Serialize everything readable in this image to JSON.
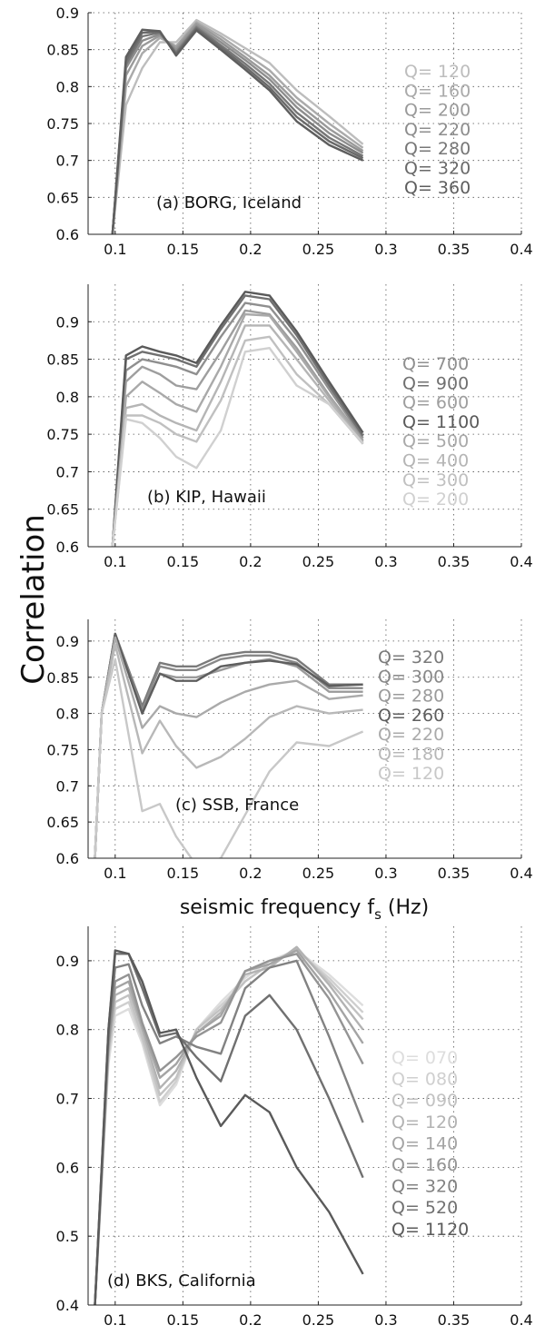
{
  "figure": {
    "ylabel": "Correlation",
    "xlabel": "seismic frequency f",
    "xlabel_sub": "s",
    "xlabel_unit": " (Hz)"
  },
  "chart_data": [
    {
      "type": "line",
      "annotation": "(a) BORG, Iceland",
      "xlim": [
        0.08,
        0.4
      ],
      "ylim": [
        0.6,
        0.9
      ],
      "xticks": [
        "0.1",
        "0.15",
        "0.2",
        "0.25",
        "0.3",
        "0.35",
        "0.4"
      ],
      "yticks": [
        "0.6",
        "0.65",
        "0.7",
        "0.75",
        "0.8",
        "0.85",
        "0.9"
      ],
      "grid": true,
      "legend": "right",
      "x": [
        0.098,
        0.108,
        0.12,
        0.133,
        0.145,
        0.16,
        0.178,
        0.196,
        0.214,
        0.234,
        0.258,
        0.283
      ],
      "series": [
        {
          "name": "Q= 120",
          "color": "#bdbdbd",
          "values": [
            0.6,
            0.775,
            0.825,
            0.86,
            0.86,
            0.89,
            0.872,
            0.852,
            0.832,
            0.795,
            0.76,
            0.722
          ]
        },
        {
          "name": "Q= 160",
          "color": "#aaaaaa",
          "values": [
            0.6,
            0.8,
            0.845,
            0.866,
            0.855,
            0.887,
            0.868,
            0.845,
            0.822,
            0.785,
            0.75,
            0.717
          ]
        },
        {
          "name": "Q= 200",
          "color": "#9a9a9a",
          "values": [
            0.6,
            0.815,
            0.855,
            0.869,
            0.852,
            0.885,
            0.864,
            0.84,
            0.815,
            0.778,
            0.743,
            0.713
          ]
        },
        {
          "name": "Q= 220",
          "color": "#8d8d8d",
          "values": [
            0.6,
            0.825,
            0.862,
            0.871,
            0.849,
            0.882,
            0.86,
            0.836,
            0.81,
            0.772,
            0.737,
            0.71
          ]
        },
        {
          "name": "Q= 280",
          "color": "#777777",
          "values": [
            0.6,
            0.83,
            0.868,
            0.873,
            0.846,
            0.88,
            0.856,
            0.831,
            0.804,
            0.765,
            0.731,
            0.706
          ]
        },
        {
          "name": "Q= 320",
          "color": "#6a6a6a",
          "values": [
            0.6,
            0.835,
            0.873,
            0.874,
            0.844,
            0.878,
            0.853,
            0.827,
            0.799,
            0.759,
            0.726,
            0.703
          ]
        },
        {
          "name": "Q= 360",
          "color": "#5e5e5e",
          "values": [
            0.6,
            0.84,
            0.877,
            0.875,
            0.842,
            0.876,
            0.85,
            0.823,
            0.795,
            0.753,
            0.721,
            0.7
          ]
        }
      ]
    },
    {
      "type": "line",
      "annotation": "(b) KIP, Hawaii",
      "xlim": [
        0.08,
        0.4
      ],
      "ylim": [
        0.6,
        0.95
      ],
      "xticks": [
        "0.1",
        "0.15",
        "0.2",
        "0.25",
        "0.3",
        "0.35",
        "0.4"
      ],
      "yticks": [
        "0.6",
        "0.65",
        "0.7",
        "0.75",
        "0.8",
        "0.85",
        "0.9"
      ],
      "grid": true,
      "legend": "right",
      "x": [
        0.098,
        0.108,
        0.12,
        0.133,
        0.145,
        0.16,
        0.178,
        0.196,
        0.214,
        0.234,
        0.258,
        0.283
      ],
      "series": [
        {
          "name": "Q= 700",
          "color": "#8f8f8f",
          "values": [
            0.6,
            0.835,
            0.85,
            0.845,
            0.84,
            0.83,
            0.88,
            0.925,
            0.92,
            0.875,
            0.81,
            0.745
          ]
        },
        {
          "name": "Q= 900",
          "color": "#707070",
          "values": [
            0.6,
            0.85,
            0.86,
            0.855,
            0.85,
            0.84,
            0.89,
            0.935,
            0.93,
            0.882,
            0.815,
            0.748
          ]
        },
        {
          "name": "Q= 600",
          "color": "#9e9e9e",
          "values": [
            0.6,
            0.82,
            0.84,
            0.83,
            0.815,
            0.81,
            0.86,
            0.915,
            0.91,
            0.865,
            0.802,
            0.742
          ]
        },
        {
          "name": "Q= 1100",
          "color": "#5a5a5a",
          "values": [
            0.6,
            0.855,
            0.867,
            0.86,
            0.855,
            0.845,
            0.895,
            0.94,
            0.935,
            0.887,
            0.82,
            0.752
          ]
        },
        {
          "name": "Q= 500",
          "color": "#a9a9a9",
          "values": [
            0.6,
            0.8,
            0.82,
            0.805,
            0.79,
            0.78,
            0.84,
            0.91,
            0.908,
            0.86,
            0.8,
            0.74
          ]
        },
        {
          "name": "Q= 400",
          "color": "#b5b5b5",
          "values": [
            0.6,
            0.785,
            0.79,
            0.775,
            0.765,
            0.755,
            0.82,
            0.895,
            0.895,
            0.85,
            0.795,
            0.738
          ]
        },
        {
          "name": "Q= 300",
          "color": "#c0c0c0",
          "values": [
            0.6,
            0.775,
            0.775,
            0.765,
            0.75,
            0.74,
            0.795,
            0.875,
            0.88,
            0.83,
            0.79,
            0.737
          ]
        },
        {
          "name": "Q= 200",
          "color": "#d0d0d0",
          "values": [
            0.6,
            0.77,
            0.765,
            0.745,
            0.72,
            0.705,
            0.755,
            0.86,
            0.865,
            0.815,
            0.79,
            0.738
          ]
        }
      ]
    },
    {
      "type": "line",
      "annotation": "(c) SSB, France",
      "xlim": [
        0.08,
        0.4
      ],
      "ylim": [
        0.6,
        0.93
      ],
      "xticks": [
        "0.1",
        "0.15",
        "0.2",
        "0.25",
        "0.3",
        "0.35",
        "0.4"
      ],
      "yticks": [
        "0.6",
        "0.65",
        "0.7",
        "0.75",
        "0.8",
        "0.85",
        "0.9"
      ],
      "grid": true,
      "legend": "right",
      "x": [
        0.085,
        0.09,
        0.1,
        0.12,
        0.133,
        0.145,
        0.16,
        0.178,
        0.196,
        0.214,
        0.234,
        0.258,
        0.283
      ],
      "series": [
        {
          "name": "Q= 320",
          "color": "#7a7a7a",
          "values": [
            0.6,
            0.8,
            0.91,
            0.81,
            0.87,
            0.865,
            0.865,
            0.88,
            0.885,
            0.885,
            0.875,
            0.84,
            0.84
          ]
        },
        {
          "name": "Q= 300",
          "color": "#888888",
          "values": [
            0.6,
            0.8,
            0.91,
            0.805,
            0.865,
            0.86,
            0.86,
            0.875,
            0.88,
            0.88,
            0.87,
            0.835,
            0.835
          ]
        },
        {
          "name": "Q= 280",
          "color": "#9a9a9a",
          "values": [
            0.6,
            0.8,
            0.91,
            0.8,
            0.855,
            0.85,
            0.85,
            0.86,
            0.87,
            0.875,
            0.865,
            0.83,
            0.83
          ]
        },
        {
          "name": "Q= 260",
          "color": "#5e5e5e",
          "values": [
            0.6,
            0.8,
            0.91,
            0.8,
            0.855,
            0.845,
            0.845,
            0.865,
            0.87,
            0.873,
            0.868,
            0.838,
            0.84
          ]
        },
        {
          "name": "Q= 220",
          "color": "#aaaaaa",
          "values": [
            0.6,
            0.8,
            0.905,
            0.78,
            0.81,
            0.8,
            0.795,
            0.815,
            0.83,
            0.84,
            0.845,
            0.82,
            0.825
          ]
        },
        {
          "name": "Q= 180",
          "color": "#b8b8b8",
          "values": [
            0.6,
            0.8,
            0.895,
            0.745,
            0.79,
            0.755,
            0.725,
            0.74,
            0.765,
            0.795,
            0.81,
            0.8,
            0.805
          ]
        },
        {
          "name": "Q= 120",
          "color": "#c8c8c8",
          "values": [
            0.6,
            0.8,
            0.875,
            0.665,
            0.675,
            0.63,
            0.59,
            0.6,
            0.66,
            0.72,
            0.76,
            0.755,
            0.775
          ]
        }
      ]
    },
    {
      "type": "line",
      "annotation": "(d) BKS, California",
      "xlim": [
        0.08,
        0.4
      ],
      "ylim": [
        0.4,
        0.95
      ],
      "xticks": [
        "0.1",
        "0.15",
        "0.2",
        "0.25",
        "0.3",
        "0.35",
        "0.4"
      ],
      "yticks": [
        "0.4",
        "0.5",
        "0.6",
        "0.7",
        "0.8",
        "0.9"
      ],
      "grid": true,
      "legend": "right",
      "x": [
        0.085,
        0.095,
        0.1,
        0.11,
        0.12,
        0.133,
        0.145,
        0.16,
        0.178,
        0.196,
        0.214,
        0.234,
        0.258,
        0.283
      ],
      "series": [
        {
          "name": "Q= 070",
          "color": "#dddddd",
          "values": [
            0.4,
            0.75,
            0.82,
            0.83,
            0.78,
            0.69,
            0.72,
            0.8,
            0.84,
            0.875,
            0.9,
            0.915,
            0.88,
            0.835
          ]
        },
        {
          "name": "Q= 080",
          "color": "#cfcfcf",
          "values": [
            0.4,
            0.76,
            0.83,
            0.84,
            0.785,
            0.695,
            0.725,
            0.8,
            0.835,
            0.87,
            0.895,
            0.915,
            0.875,
            0.825
          ]
        },
        {
          "name": "Q= 090",
          "color": "#c2c2c2",
          "values": [
            0.4,
            0.765,
            0.84,
            0.85,
            0.79,
            0.705,
            0.73,
            0.8,
            0.83,
            0.87,
            0.895,
            0.918,
            0.87,
            0.815
          ]
        },
        {
          "name": "Q= 120",
          "color": "#b3b3b3",
          "values": [
            0.4,
            0.77,
            0.85,
            0.86,
            0.8,
            0.715,
            0.74,
            0.795,
            0.825,
            0.88,
            0.89,
            0.92,
            0.865,
            0.8
          ]
        },
        {
          "name": "Q= 140",
          "color": "#a4a4a4",
          "values": [
            0.4,
            0.775,
            0.86,
            0.87,
            0.805,
            0.73,
            0.75,
            0.795,
            0.82,
            0.885,
            0.895,
            0.915,
            0.855,
            0.78
          ]
        },
        {
          "name": "Q= 160",
          "color": "#949494",
          "values": [
            0.4,
            0.78,
            0.87,
            0.88,
            0.81,
            0.74,
            0.76,
            0.79,
            0.81,
            0.885,
            0.9,
            0.91,
            0.845,
            0.75
          ]
        },
        {
          "name": "Q= 320",
          "color": "#828282",
          "values": [
            0.4,
            0.79,
            0.89,
            0.895,
            0.835,
            0.78,
            0.79,
            0.775,
            0.765,
            0.86,
            0.89,
            0.9,
            0.79,
            0.665
          ]
        },
        {
          "name": "Q= 520",
          "color": "#707070",
          "values": [
            0.4,
            0.8,
            0.91,
            0.91,
            0.86,
            0.79,
            0.795,
            0.76,
            0.725,
            0.82,
            0.85,
            0.8,
            0.7,
            0.585
          ]
        },
        {
          "name": "Q= 1120",
          "color": "#5a5a5a",
          "values": [
            0.4,
            0.8,
            0.915,
            0.91,
            0.87,
            0.795,
            0.8,
            0.73,
            0.66,
            0.705,
            0.68,
            0.6,
            0.535,
            0.445
          ]
        }
      ]
    }
  ]
}
